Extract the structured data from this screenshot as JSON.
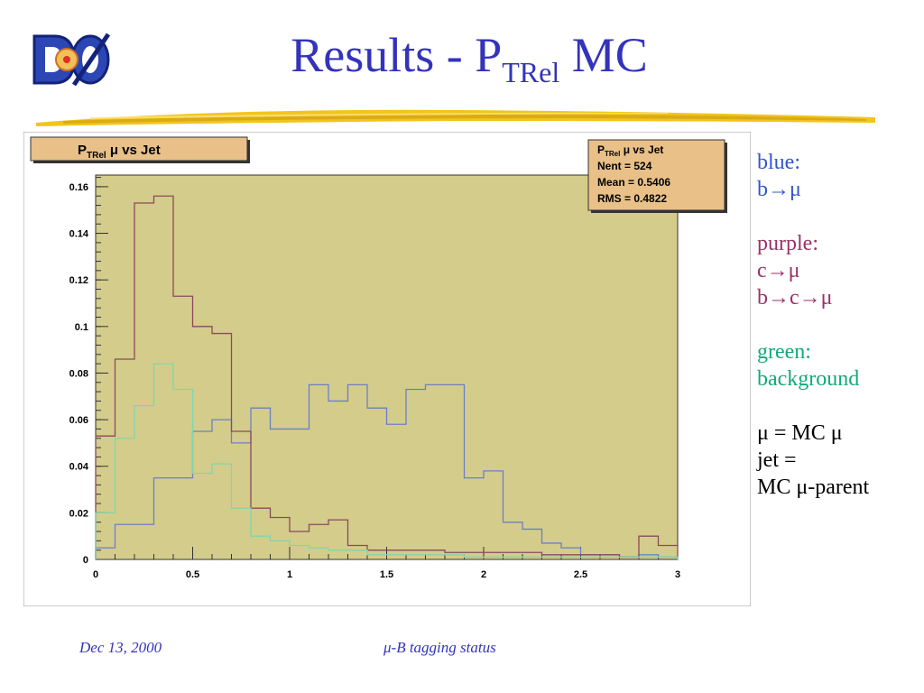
{
  "slide": {
    "title_main": "Results - P",
    "title_sub": "TRel",
    "title_tail": " MC",
    "logo_text": "DØ"
  },
  "footer": {
    "date": "Dec 13, 2000",
    "subtitle": "μ-B tagging status"
  },
  "side_legend": {
    "blue_head": "blue:",
    "blue_desc": "b→μ",
    "purple_head": "purple:",
    "purple_desc1": "c→μ",
    "purple_desc2": "b→c→μ",
    "green_head": "green:",
    "green_desc": "background",
    "note1": "μ = MC μ",
    "note2": "jet =",
    "note3": "MC μ-parent"
  },
  "colors": {
    "frame_fill": "#d4cc8a",
    "blue": "#6b7fc9",
    "purple": "#8b4a5e",
    "green": "#7fd6b0",
    "title_color": "#3333bb"
  },
  "chart_data": {
    "type": "histogram",
    "title_main": "P",
    "title_sub": "TRel",
    "title_tail": " μ vs Jet",
    "stats": {
      "name_main": "P",
      "name_sub": "TRel",
      "name_tail": " μ vs Jet",
      "nent_label": "Nent = 524",
      "mean_label": "Mean  = 0.5406",
      "rms_label": "RMS   = 0.4822"
    },
    "xlim": [
      0,
      3
    ],
    "ylim": [
      0,
      0.165
    ],
    "xticks": [
      "0",
      "0.5",
      "1",
      "1.5",
      "2",
      "2.5",
      "3"
    ],
    "yticks": [
      "0",
      "0.02",
      "0.04",
      "0.06",
      "0.08",
      "0.1",
      "0.12",
      "0.14",
      "0.16"
    ],
    "bin_width": 0.1,
    "series": [
      {
        "name": "blue",
        "color": "#6b7fc9",
        "values": [
          0.005,
          0.015,
          0.015,
          0.035,
          0.035,
          0.055,
          0.06,
          0.05,
          0.065,
          0.056,
          0.056,
          0.075,
          0.068,
          0.075,
          0.065,
          0.058,
          0.073,
          0.075,
          0.075,
          0.035,
          0.038,
          0.016,
          0.013,
          0.007,
          0.005,
          0.002,
          0.002,
          0.001,
          0.002,
          0.001
        ]
      },
      {
        "name": "purple",
        "color": "#8b4a5e",
        "values": [
          0.053,
          0.086,
          0.153,
          0.156,
          0.113,
          0.1,
          0.097,
          0.055,
          0.022,
          0.018,
          0.012,
          0.015,
          0.017,
          0.006,
          0.004,
          0.004,
          0.004,
          0.004,
          0.003,
          0.003,
          0.003,
          0.003,
          0.003,
          0.002,
          0.002,
          0.002,
          0.002,
          0.001,
          0.01,
          0.006
        ]
      },
      {
        "name": "green",
        "color": "#7fd6b0",
        "values": [
          0.02,
          0.052,
          0.066,
          0.084,
          0.073,
          0.037,
          0.041,
          0.022,
          0.01,
          0.008,
          0.006,
          0.005,
          0.004,
          0.004,
          0.002,
          0.002,
          0.002,
          0.002,
          0.002,
          0.001,
          0.001,
          0.001,
          0.001,
          0.001,
          0.001,
          0.001,
          0.001,
          0.001,
          0.001,
          0.001
        ]
      }
    ]
  }
}
